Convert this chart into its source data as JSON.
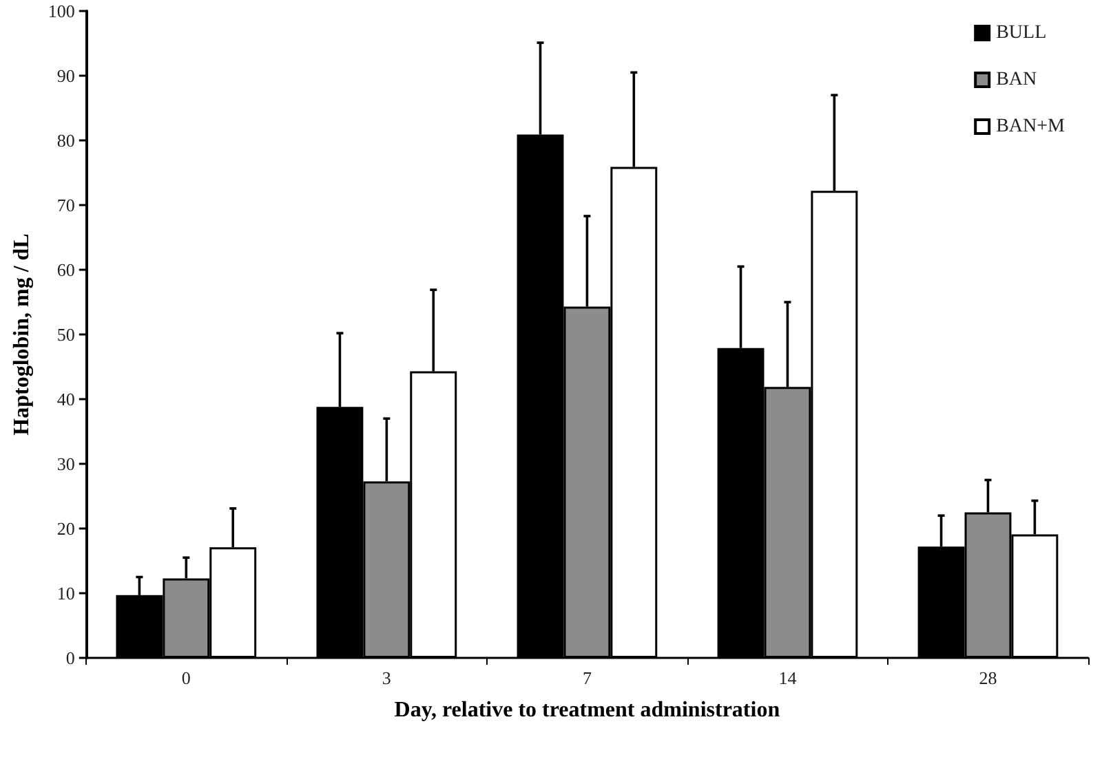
{
  "chart_data": {
    "type": "bar",
    "xlabel": "Day, relative to treatment administration",
    "ylabel": "Haptoglobin, mg / dL",
    "categories": [
      "0",
      "3",
      "7",
      "14",
      "28"
    ],
    "series": [
      {
        "name": "BULL",
        "color": "#000000",
        "values": [
          9.7,
          38.8,
          80.9,
          47.9,
          17.2
        ],
        "errors": [
          [
            9.7,
            12.5
          ],
          [
            38.8,
            50.2
          ],
          [
            80.9,
            95.1
          ],
          [
            47.9,
            60.5
          ],
          [
            17.2,
            22
          ]
        ]
      },
      {
        "name": "BAN",
        "color": "#8c8c8c",
        "values": [
          12.3,
          27.3,
          54.3,
          41.9,
          22.5
        ],
        "errors": [
          [
            12.3,
            15.5
          ],
          [
            27.3,
            37
          ],
          [
            54.3,
            68.3
          ],
          [
            41.9,
            55
          ],
          [
            22.5,
            27.5
          ]
        ]
      },
      {
        "name": "BAN+M",
        "color": "#ffffff",
        "values": [
          17.1,
          44.3,
          75.9,
          72.2,
          19.1
        ],
        "errors": [
          [
            17.1,
            23.1
          ],
          [
            44.3,
            56.9
          ],
          [
            75.9,
            90.5
          ],
          [
            72.2,
            87
          ],
          [
            19.1,
            24.3
          ]
        ]
      }
    ],
    "ylim": [
      0,
      100
    ],
    "yticks": [
      0,
      10,
      20,
      30,
      40,
      50,
      60,
      70,
      80,
      90,
      100
    ],
    "grid": false,
    "legend": "top right"
  }
}
